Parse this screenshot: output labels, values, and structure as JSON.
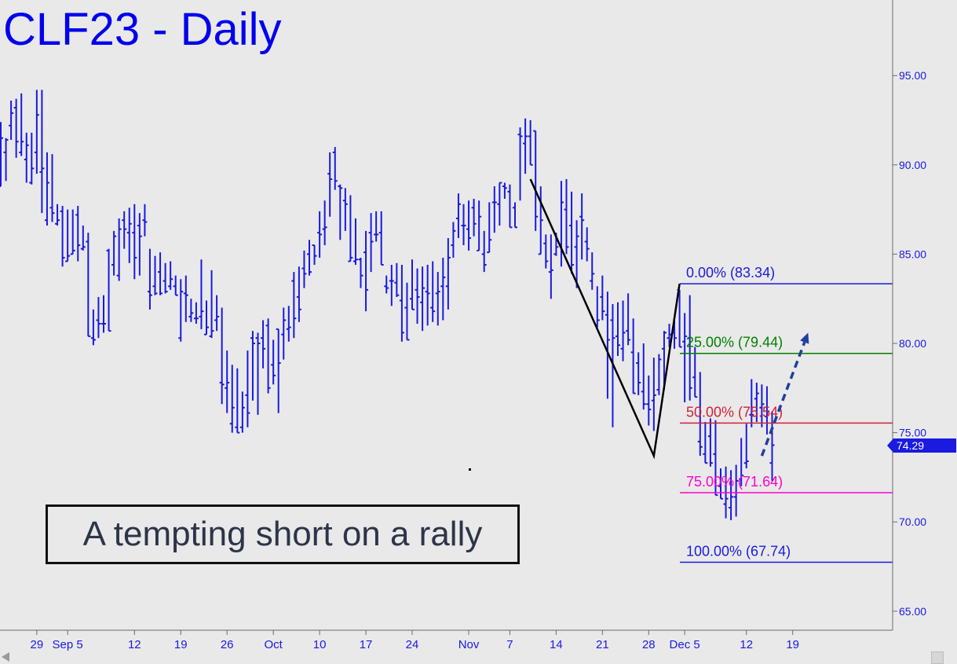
{
  "title": "CLF23 - Daily",
  "annotation": "A tempting short on a rally",
  "last_price_label": "74.29",
  "colors": {
    "background": "#e9e9e9",
    "bars": "#1a1ae0",
    "title": "#0000ee",
    "fib_0": "#1a1ae0",
    "fib_25": "#008000",
    "fib_50": "#d0203a",
    "fib_75": "#ff00cc",
    "fib_100": "#1a1ae0",
    "abc_pattern": "#000000",
    "arrow": "#1f3fa0"
  },
  "chart_data": {
    "type": "ohlc",
    "title": "CLF23 - Daily",
    "ylim": [
      63.0,
      98.0
    ],
    "y_ticks": [
      "95.00",
      "90.00",
      "85.00",
      "80.00",
      "75.00",
      "70.00",
      "65.00"
    ],
    "x_tick_labels": [
      "29",
      "Sep 5",
      "12",
      "19",
      "26",
      "Oct",
      "10",
      "17",
      "24",
      "Nov",
      "7",
      "14",
      "21",
      "28",
      "Dec 5",
      "12",
      "19"
    ],
    "grid": false,
    "last_price": 74.29,
    "fib_levels": [
      {
        "label": "0.00% (83.34)",
        "value": 83.34
      },
      {
        "label": "25.00% (79.44)",
        "value": 79.44
      },
      {
        "label": "50.00% (75.54)",
        "value": 75.54
      },
      {
        "label": "75.00% (71.64)",
        "value": 71.64
      },
      {
        "label": "100.00% (67.74)",
        "value": 67.74
      }
    ],
    "pattern_points": [
      {
        "bar": 103,
        "price": 89.2
      },
      {
        "bar": 127,
        "price": 73.7
      },
      {
        "bar": 132,
        "price": 83.34
      }
    ],
    "arrow": {
      "from": {
        "bar": 148,
        "price": 73.7
      },
      "to": {
        "bar": 157,
        "price": 80.6
      }
    },
    "bars": [
      [
        88.8,
        92.4,
        88.8,
        91.5
      ],
      [
        90.7,
        91.5,
        89.1,
        91.4
      ],
      [
        92.2,
        93.6,
        91.4,
        92.9
      ],
      [
        93.2,
        93.7,
        90.4,
        91.3
      ],
      [
        90.7,
        94.0,
        90.5,
        91.3
      ],
      [
        90.3,
        91.8,
        89.0,
        91.1
      ],
      [
        89.0,
        91.8,
        88.9,
        89.8
      ],
      [
        90.7,
        94.2,
        89.5,
        92.8
      ],
      [
        89.6,
        94.2,
        87.3,
        89.8
      ],
      [
        86.9,
        90.7,
        86.6,
        89.0
      ],
      [
        87.6,
        90.6,
        86.8,
        87.3
      ],
      [
        86.7,
        87.8,
        86.6,
        86.9
      ],
      [
        87.4,
        87.7,
        84.3,
        84.8
      ],
      [
        84.6,
        87.5,
        84.6,
        84.9
      ],
      [
        85.0,
        87.5,
        85.0,
        85.2
      ],
      [
        87.2,
        87.7,
        84.6,
        85.5
      ],
      [
        85.3,
        86.6,
        85.2,
        85.4
      ],
      [
        85.7,
        86.2,
        81.9,
        80.4
      ],
      [
        80.3,
        81.9,
        79.9,
        80.2
      ],
      [
        81.3,
        82.6,
        80.3,
        81.1
      ],
      [
        81.1,
        82.7,
        80.6,
        81.1
      ],
      [
        85.2,
        85.3,
        81.0,
        80.7
      ],
      [
        84.4,
        86.3,
        83.8,
        86.0
      ],
      [
        83.8,
        87.0,
        83.5,
        86.4
      ],
      [
        86.9,
        87.4,
        85.3,
        86.4
      ],
      [
        86.2,
        87.6,
        84.5,
        86.7
      ],
      [
        86.2,
        87.8,
        83.6,
        84.8
      ],
      [
        86.6,
        87.3,
        83.8,
        86.0
      ],
      [
        86.9,
        87.8,
        86.0,
        86.8
      ],
      [
        82.9,
        85.3,
        81.9,
        82.7
      ],
      [
        83.2,
        84.9,
        82.7,
        82.8
      ],
      [
        84.0,
        85.1,
        82.7,
        82.8
      ],
      [
        83.5,
        84.5,
        82.8,
        82.9
      ],
      [
        83.2,
        84.6,
        83.0,
        83.6
      ],
      [
        83.2,
        83.8,
        82.7,
        82.7
      ],
      [
        80.3,
        83.6,
        80.1,
        82.9
      ],
      [
        82.8,
        83.8,
        81.2,
        82.7
      ],
      [
        81.5,
        82.5,
        81.2,
        81.7
      ],
      [
        81.4,
        82.3,
        81.1,
        81.4
      ],
      [
        81.5,
        84.7,
        80.8,
        81.8
      ],
      [
        80.5,
        82.4,
        80.5,
        80.9
      ],
      [
        80.4,
        84.1,
        80.3,
        80.7
      ],
      [
        81.3,
        82.7,
        80.7,
        81.5
      ],
      [
        77.8,
        82.0,
        76.6,
        77.7
      ],
      [
        77.5,
        79.6,
        76.1,
        77.8
      ],
      [
        75.5,
        78.8,
        75.0,
        76.4
      ],
      [
        75.3,
        78.6,
        75.1,
        75.0
      ],
      [
        75.3,
        77.3,
        75.0,
        76.4
      ],
      [
        77.1,
        79.6,
        75.3,
        76.1
      ],
      [
        80.3,
        80.7,
        76.8,
        80.0
      ],
      [
        80.3,
        80.6,
        76.0,
        80.0
      ],
      [
        80.3,
        81.3,
        78.6,
        79.7
      ],
      [
        81.0,
        81.4,
        77.2,
        77.5
      ],
      [
        78.8,
        80.2,
        77.7,
        78.2
      ],
      [
        80.8,
        80.8,
        76.1,
        78.9
      ],
      [
        80.5,
        82.0,
        79.1,
        81.3
      ],
      [
        80.8,
        82.1,
        80.1,
        80.9
      ],
      [
        83.5,
        84.0,
        80.3,
        81.4
      ],
      [
        82.6,
        84.3,
        81.2,
        81.9
      ],
      [
        84.2,
        85.2,
        83.1,
        83.9
      ],
      [
        85.0,
        85.8,
        83.8,
        84.0
      ],
      [
        85.5,
        85.5,
        84.4,
        84.9
      ],
      [
        86.2,
        87.4,
        84.8,
        86.1
      ],
      [
        86.4,
        88.0,
        85.5,
        86.5
      ],
      [
        89.5,
        90.7,
        87.1,
        89.2
      ],
      [
        90.7,
        91.0,
        88.6,
        89.1
      ],
      [
        88.8,
        88.9,
        85.8,
        88.7
      ],
      [
        88.0,
        88.7,
        86.3,
        87.8
      ],
      [
        84.6,
        88.3,
        84.6,
        84.8
      ],
      [
        84.6,
        87.0,
        84.4,
        84.7
      ],
      [
        84.7,
        84.8,
        83.1,
        83.8
      ],
      [
        85.1,
        86.3,
        81.8,
        83.0
      ],
      [
        86.2,
        87.3,
        84.0,
        85.7
      ],
      [
        86.1,
        87.4,
        85.7,
        86.1
      ],
      [
        86.2,
        87.4,
        84.5,
        84.4
      ],
      [
        83.2,
        83.8,
        82.8,
        83.1
      ],
      [
        83.5,
        84.4,
        82.1,
        83.5
      ],
      [
        83.4,
        84.5,
        82.6,
        82.7
      ],
      [
        82.4,
        84.4,
        80.1,
        80.6
      ],
      [
        82.0,
        83.4,
        80.4,
        80.2
      ],
      [
        82.5,
        84.7,
        81.9,
        81.9
      ],
      [
        83.0,
        84.2,
        81.1,
        82.6
      ],
      [
        82.3,
        84.3,
        80.7,
        83.1
      ],
      [
        82.9,
        84.4,
        81.0,
        82.8
      ],
      [
        82.0,
        84.6,
        81.2,
        81.8
      ],
      [
        82.8,
        84.0,
        81.0,
        82.9
      ],
      [
        83.2,
        84.8,
        81.3,
        83.7
      ],
      [
        83.2,
        85.9,
        81.9,
        84.8
      ],
      [
        85.5,
        86.8,
        84.8,
        86.3
      ],
      [
        87.0,
        88.4,
        85.9,
        87.8
      ],
      [
        86.6,
        87.8,
        85.5,
        86.6
      ],
      [
        86.4,
        88.0,
        85.2,
        85.9
      ],
      [
        87.6,
        88.1,
        86.0,
        86.7
      ],
      [
        85.2,
        88.0,
        85.6,
        87.1
      ],
      [
        85.0,
        86.3,
        84.0,
        84.4
      ],
      [
        85.1,
        87.9,
        85.1,
        85.8
      ],
      [
        87.9,
        88.8,
        86.2,
        87.9
      ],
      [
        87.8,
        89.0,
        86.6,
        89.0
      ],
      [
        88.8,
        89.0,
        88.1,
        88.7
      ],
      [
        88.5,
        88.9,
        86.9,
        86.5
      ],
      [
        87.6,
        87.9,
        86.9,
        86.5
      ],
      [
        91.7,
        92.1,
        88.0,
        91.6
      ],
      [
        91.2,
        92.6,
        89.5,
        91.6
      ],
      [
        91.6,
        92.5,
        90.1,
        90.0
      ],
      [
        91.9,
        91.5,
        86.3,
        87.1
      ],
      [
        85.0,
        88.8,
        85.8,
        86.9
      ],
      [
        85.6,
        86.1,
        84.2,
        84.6
      ],
      [
        84.0,
        86.1,
        82.5,
        84.1
      ],
      [
        85.0,
        86.2,
        84.9,
        85.4
      ],
      [
        85.5,
        89.1,
        84.3,
        87.9
      ],
      [
        87.5,
        89.2,
        85.0,
        85.4
      ],
      [
        86.6,
        88.5,
        83.9,
        84.4
      ],
      [
        85.4,
        86.9,
        83.1,
        86.0
      ],
      [
        87.1,
        88.4,
        84.7,
        86.9
      ],
      [
        85.7,
        86.5,
        84.6,
        85.3
      ],
      [
        83.5,
        85.1,
        83.0,
        83.9
      ],
      [
        81.0,
        83.2,
        80.9,
        81.3
      ],
      [
        82.6,
        83.8,
        81.3,
        81.8
      ],
      [
        81.6,
        82.9,
        76.9,
        80.2
      ],
      [
        81.3,
        82.2,
        75.3,
        80.3
      ],
      [
        80.4,
        82.3,
        79.3,
        79.9
      ],
      [
        79.7,
        82.4,
        79.0,
        80.6
      ],
      [
        80.7,
        82.8,
        79.9,
        80.2
      ],
      [
        79.5,
        81.4,
        77.3,
        77.2
      ],
      [
        78.9,
        79.5,
        77.1,
        77.8
      ],
      [
        77.3,
        80.0,
        76.3,
        76.6
      ],
      [
        76.6,
        78.2,
        75.4,
        76.3
      ],
      [
        76.8,
        79.2,
        75.1,
        77.1
      ],
      [
        77.4,
        79.4,
        77.1,
        79.1
      ],
      [
        79.7,
        80.7,
        77.4,
        80.6
      ],
      [
        80.3,
        81.1,
        79.8,
        80.5
      ],
      [
        80.6,
        81.3,
        79.7,
        80.3
      ],
      [
        83.0,
        82.8,
        80.0,
        79.8
      ],
      [
        80.1,
        81.7,
        76.7,
        80.4
      ],
      [
        80.3,
        82.7,
        76.8,
        77.5
      ],
      [
        78.1,
        79.8,
        78.1,
        77.0
      ],
      [
        74.5,
        78.4,
        73.7,
        74.2
      ],
      [
        73.8,
        75.6,
        73.9,
        73.3
      ],
      [
        74.8,
        75.8,
        73.1,
        73.3
      ],
      [
        73.8,
        75.7,
        72.2,
        71.5
      ],
      [
        72.0,
        73.0,
        71.4,
        71.3
      ],
      [
        71.0,
        73.1,
        70.2,
        71.3
      ],
      [
        70.8,
        72.9,
        70.1,
        71.4
      ],
      [
        71.4,
        73.2,
        70.3,
        72.3
      ],
      [
        72.4,
        74.7,
        72.0,
        72.6
      ],
      [
        73.3,
        75.5,
        73.0,
        73.4
      ],
      [
        76.0,
        78.0,
        75.3,
        76.0
      ],
      [
        76.9,
        77.8,
        75.6,
        77.2
      ],
      [
        76.4,
        77.7,
        75.3,
        76.6
      ],
      [
        75.9,
        77.6,
        74.9,
        76.2
      ],
      [
        73.3,
        76.2,
        72.3,
        74.3
      ]
    ]
  }
}
